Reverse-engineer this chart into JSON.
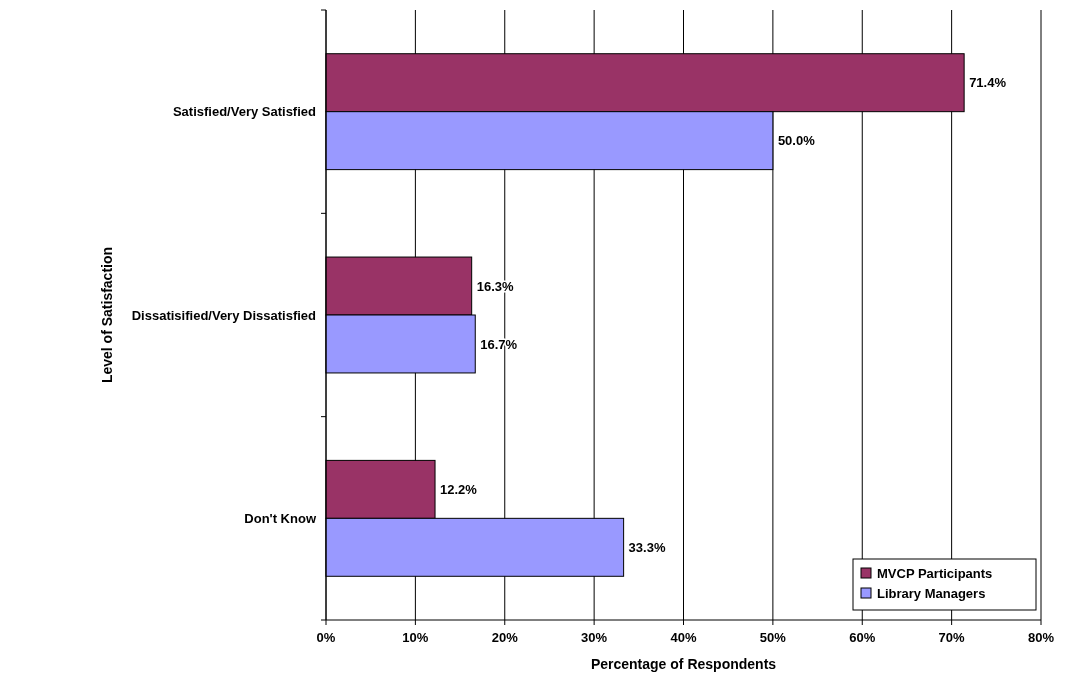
{
  "chart_data": {
    "type": "bar",
    "orientation": "horizontal",
    "xlabel": "Percentage of Respondents",
    "ylabel": "Level of Satisfaction",
    "categories": [
      "Satisfied/Very Satisfied",
      "Dissatisified/Very Dissatisfied",
      "Don't Know"
    ],
    "series": [
      {
        "name": "MVCP Participants",
        "color": "#993366",
        "values": [
          71.4,
          16.3,
          12.2
        ],
        "value_labels": [
          "71.4%",
          "16.3%",
          "12.2%"
        ]
      },
      {
        "name": "Library Managers",
        "color": "#9999ff",
        "values": [
          50.0,
          16.7,
          33.3
        ],
        "value_labels": [
          "50.0%",
          "16.7%",
          "33.3%"
        ]
      }
    ],
    "xlim": [
      0,
      80
    ],
    "xticks": [
      {
        "value": 0,
        "label": "0%"
      },
      {
        "value": 10,
        "label": "10%"
      },
      {
        "value": 20,
        "label": "20%"
      },
      {
        "value": 30,
        "label": "30%"
      },
      {
        "value": 40,
        "label": "40%"
      },
      {
        "value": 50,
        "label": "50%"
      },
      {
        "value": 60,
        "label": "60%"
      },
      {
        "value": 70,
        "label": "70%"
      },
      {
        "value": 80,
        "label": "80%"
      }
    ],
    "grid": "x",
    "legend": "bottom right"
  }
}
